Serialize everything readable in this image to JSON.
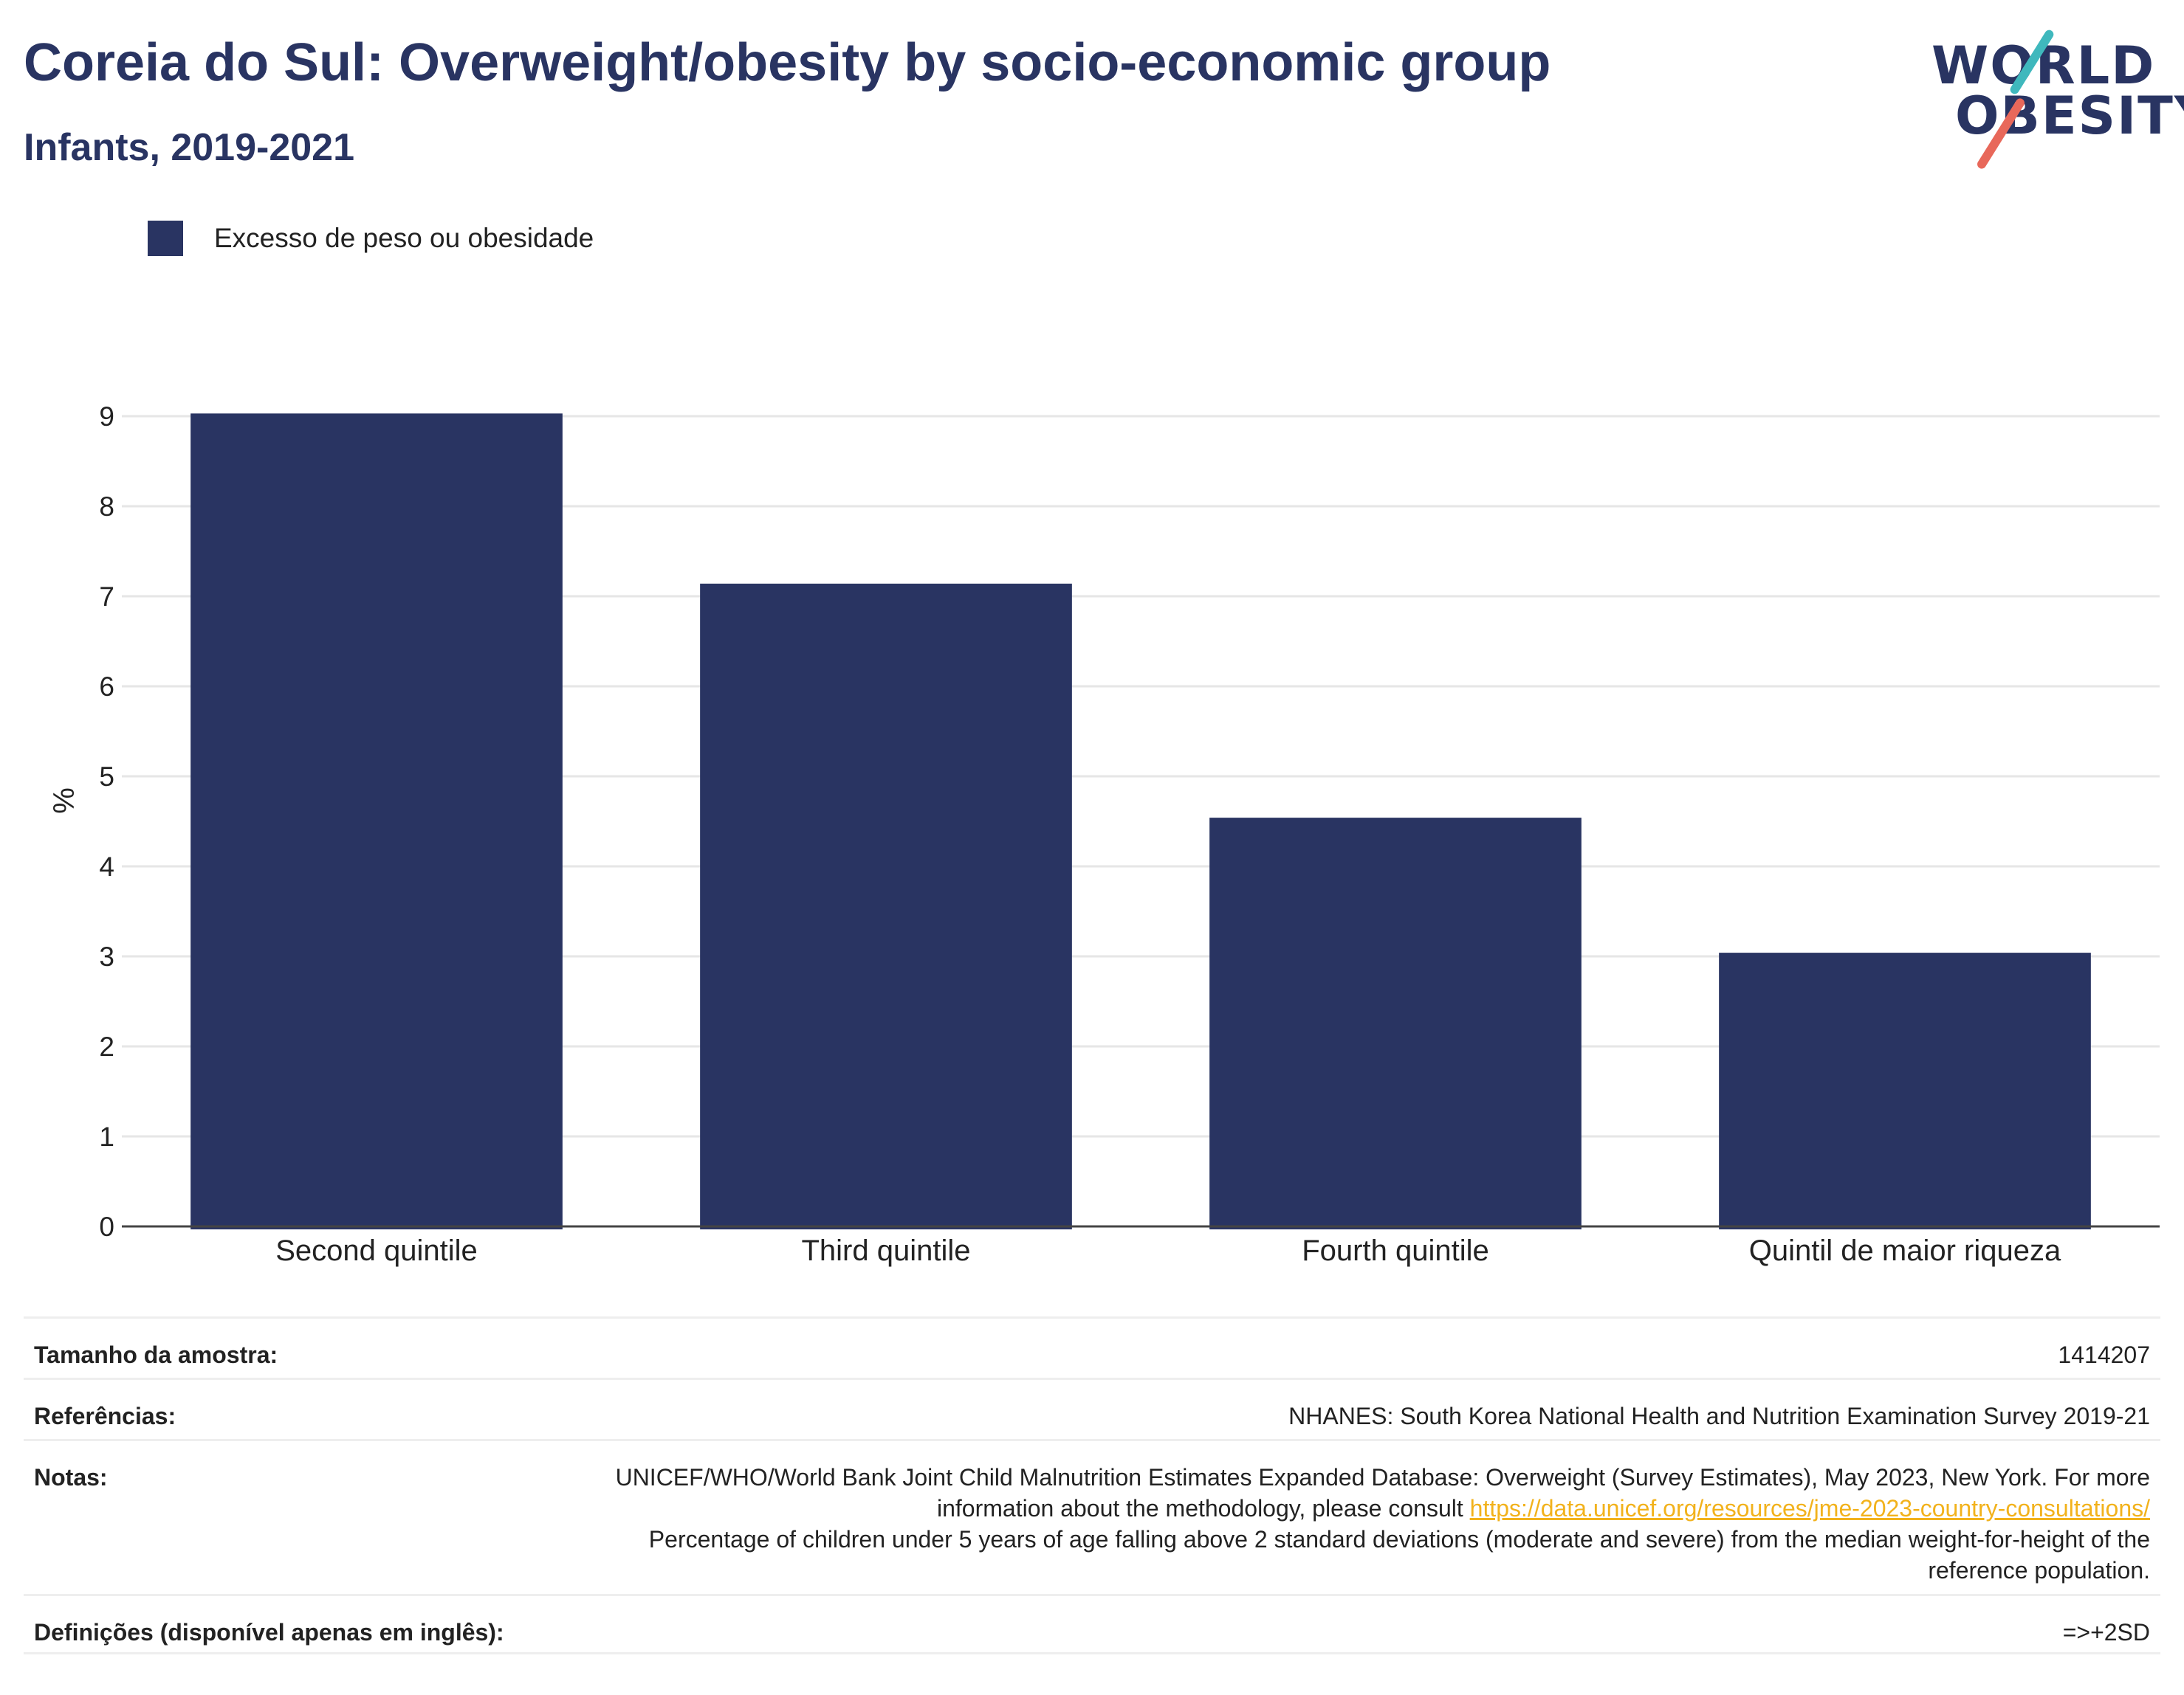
{
  "header": {
    "title": "Coreia do Sul: Overweight/obesity by socio-economic group",
    "subtitle": "Infants, 2019-2021"
  },
  "logo": {
    "line1": "WORLD",
    "line2": "OBESITY"
  },
  "chart_data": {
    "type": "bar",
    "title": "Coreia do Sul: Overweight/obesity by socio-economic group",
    "subtitle": "Infants, 2019-2021",
    "categories": [
      "Second quintile",
      "Third quintile",
      "Fourth quintile",
      "Quintil de maior riqueza"
    ],
    "series": [
      {
        "name": "Excesso de peso ou obesidade",
        "values": [
          9.03,
          7.14,
          4.54,
          3.04
        ],
        "color": "#293462"
      }
    ],
    "xlabel": "",
    "ylabel": "%",
    "ylim": [
      0,
      9
    ],
    "yticks": [
      0,
      1,
      2,
      3,
      4,
      5,
      6,
      7,
      8,
      9
    ],
    "grid": true,
    "legend_position": "top-left"
  },
  "footer": {
    "sample_label": "Tamanho da amostra:",
    "sample_value": "1414207",
    "refs_label": "Referências:",
    "refs_value": "NHANES: South Korea National Health and Nutrition Examination Survey 2019-21",
    "notes_label": "Notas:",
    "notes_text_1": "UNICEF/WHO/World Bank Joint Child Malnutrition Estimates Expanded Database: Overweight (Survey Estimates), May 2023, New York. For more information about the methodology, please consult ",
    "notes_link": "https://data.unicef.org/resources/jme-2023-country-consultations/",
    "notes_text_2": "Percentage of children under 5 years of age falling above 2 standard deviations (moderate and severe) from the median weight-for-height of the reference population.",
    "defs_label": "Definições (disponível apenas em inglês):",
    "defs_value": "=>+2SD"
  }
}
